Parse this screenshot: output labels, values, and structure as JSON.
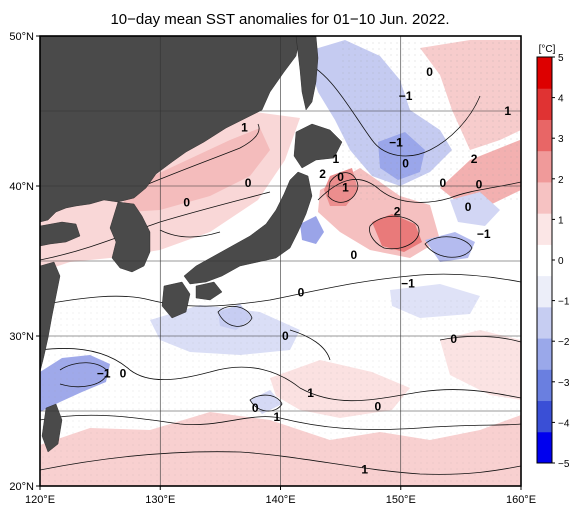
{
  "title": "10−day mean SST anomalies for 01−10 Jun. 2022.",
  "map": {
    "lon_range": [
      120,
      160
    ],
    "lat_range": [
      20,
      50
    ],
    "land_color": "#4a4a4a",
    "grid": true,
    "lon_ticks": [
      {
        "value": 120,
        "label": "120°E"
      },
      {
        "value": 130,
        "label": "130°E"
      },
      {
        "value": 140,
        "label": "140°E"
      },
      {
        "value": 150,
        "label": "150°E"
      },
      {
        "value": 160,
        "label": "160°E"
      }
    ],
    "lat_ticks": [
      {
        "value": 20,
        "label": "20°N"
      },
      {
        "value": 30,
        "label": "30°N"
      },
      {
        "value": 40,
        "label": "40°N"
      },
      {
        "value": 50,
        "label": "50°N"
      }
    ]
  },
  "colorbar": {
    "unit": "[°C]",
    "min": -5,
    "max": 5,
    "ticks": [
      "5",
      "4",
      "3",
      "2",
      "1",
      "0",
      "−1",
      "−2",
      "−3",
      "−4",
      "−5"
    ],
    "colors": [
      "#0000ee",
      "#3a4fd6",
      "#6a7fe0",
      "#9aa8ea",
      "#c6cdf2",
      "#eceef9",
      "#ffffff",
      "#fbe6e6",
      "#f6c2c2",
      "#f09a9a",
      "#e86666",
      "#e03333",
      "#dd0000"
    ]
  },
  "contour_labels": [
    {
      "text": "1",
      "lon": 137.0,
      "lat": 43.9
    },
    {
      "text": "0",
      "lon": 137.3,
      "lat": 40.2
    },
    {
      "text": "0",
      "lon": 132.2,
      "lat": 38.9
    },
    {
      "text": "2",
      "lon": 143.5,
      "lat": 40.8
    },
    {
      "text": "1",
      "lon": 144.6,
      "lat": 41.8
    },
    {
      "text": "0",
      "lon": 145.0,
      "lat": 40.6
    },
    {
      "text": "1",
      "lon": 145.4,
      "lat": 39.9
    },
    {
      "text": "2",
      "lon": 149.7,
      "lat": 38.3
    },
    {
      "text": "−1",
      "lon": 149.6,
      "lat": 42.9
    },
    {
      "text": "0",
      "lon": 150.4,
      "lat": 41.5
    },
    {
      "text": "−1",
      "lon": 150.4,
      "lat": 46.0
    },
    {
      "text": "0",
      "lon": 152.4,
      "lat": 47.6
    },
    {
      "text": "2",
      "lon": 156.1,
      "lat": 41.8
    },
    {
      "text": "1",
      "lon": 158.9,
      "lat": 45.0
    },
    {
      "text": "0",
      "lon": 153.5,
      "lat": 40.2
    },
    {
      "text": "0",
      "lon": 156.5,
      "lat": 40.1
    },
    {
      "text": "0",
      "lon": 155.6,
      "lat": 38.6
    },
    {
      "text": "−1",
      "lon": 156.9,
      "lat": 36.8
    },
    {
      "text": "0",
      "lon": 146.1,
      "lat": 35.4
    },
    {
      "text": "−1",
      "lon": 150.6,
      "lat": 33.5
    },
    {
      "text": "0",
      "lon": 141.7,
      "lat": 32.9
    },
    {
      "text": "0",
      "lon": 140.4,
      "lat": 30.0
    },
    {
      "text": "0",
      "lon": 154.4,
      "lat": 29.8
    },
    {
      "text": "−1",
      "lon": 125.3,
      "lat": 27.5
    },
    {
      "text": "0",
      "lon": 126.9,
      "lat": 27.5
    },
    {
      "text": "1",
      "lon": 142.5,
      "lat": 26.2
    },
    {
      "text": "0",
      "lon": 137.9,
      "lat": 25.2
    },
    {
      "text": "0",
      "lon": 148.1,
      "lat": 25.3
    },
    {
      "text": "1",
      "lon": 139.7,
      "lat": 24.6
    },
    {
      "text": "1",
      "lon": 147.0,
      "lat": 21.1
    }
  ]
}
